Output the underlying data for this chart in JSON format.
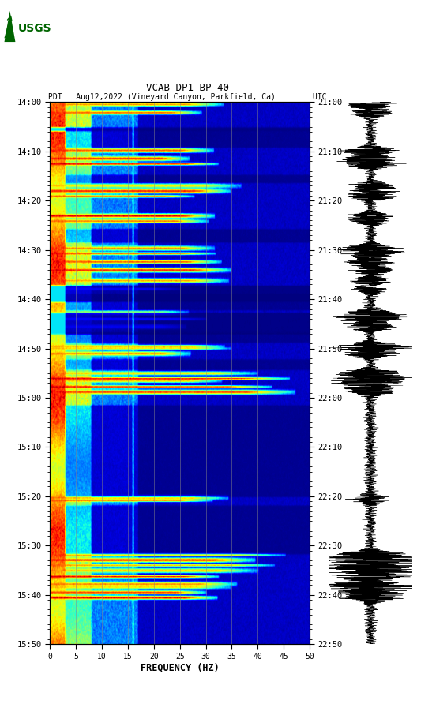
{
  "title_line1": "VCAB DP1 BP 40",
  "title_line2": "PDT   Aug12,2022 (Vineyard Canyon, Parkfield, Ca)        UTC",
  "xlabel": "FREQUENCY (HZ)",
  "freq_min": 0,
  "freq_max": 50,
  "pdt_ticks": [
    "14:00",
    "14:10",
    "14:20",
    "14:30",
    "14:40",
    "14:50",
    "15:00",
    "15:10",
    "15:20",
    "15:30",
    "15:40",
    "15:50"
  ],
  "utc_ticks": [
    "21:00",
    "21:10",
    "21:20",
    "21:30",
    "21:40",
    "21:50",
    "22:00",
    "22:10",
    "22:20",
    "22:30",
    "22:40",
    "22:50"
  ],
  "freq_ticks": [
    0,
    5,
    10,
    15,
    20,
    25,
    30,
    35,
    40,
    45,
    50
  ],
  "grid_freq_lines": [
    5,
    10,
    15,
    20,
    25,
    30,
    35,
    40,
    45
  ],
  "background_color": "#ffffff",
  "colormap": "jet",
  "seed": 42,
  "n_freq": 500,
  "n_time": 720,
  "logo_color": "#006400",
  "figsize": [
    5.52,
    8.92
  ],
  "dpi": 100
}
